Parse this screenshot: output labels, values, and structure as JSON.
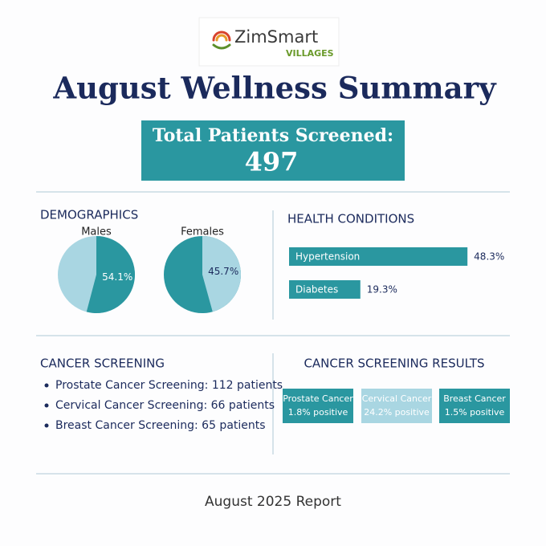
{
  "logo": {
    "name": "ZimSmart",
    "tagline": "VILLAGES"
  },
  "title": "August Wellness Summary",
  "total": {
    "label": "Total Patients Screened:",
    "value": 497
  },
  "demographics": {
    "title": "DEMOGRAPHICS",
    "type": "pie",
    "charts": [
      {
        "label": "Males",
        "value": 54.1,
        "value_label": "54.1%",
        "color": "#2a97a0",
        "rest_color": "#a9d6e2"
      },
      {
        "label": "Females",
        "value": 45.7,
        "value_label": "45.7%",
        "color": "#a9d6e2",
        "rest_color": "#2a97a0"
      }
    ]
  },
  "health_conditions": {
    "title": "HEALTH CONDITIONS",
    "type": "bar",
    "color": "#2a97a0",
    "xlim": [
      0,
      100
    ],
    "items": [
      {
        "name": "Hypertension",
        "value": 48.3,
        "value_label": "48.3%"
      },
      {
        "name": "Diabetes",
        "value": 19.3,
        "value_label": "19.3%"
      }
    ]
  },
  "cancer_screening": {
    "title": "CANCER SCREENING",
    "items": [
      "Prostate Cancer Screening: 112 patients",
      "Cervical Cancer Screening: 66 patients",
      "Breast Cancer Screening: 65 patients"
    ]
  },
  "screening_results": {
    "title": "CANCER SCREENING RESULTS",
    "items": [
      {
        "name": "Prostate Cancer",
        "result": "1.8% positive",
        "color": "#2a97a0"
      },
      {
        "name": "Cervical Cancer",
        "result": "24.2% positive",
        "color": "#a9d6e2"
      },
      {
        "name": "Breast Cancer",
        "result": "1.5% positive",
        "color": "#2a97a0"
      }
    ]
  },
  "footer": "August 2025 Report"
}
